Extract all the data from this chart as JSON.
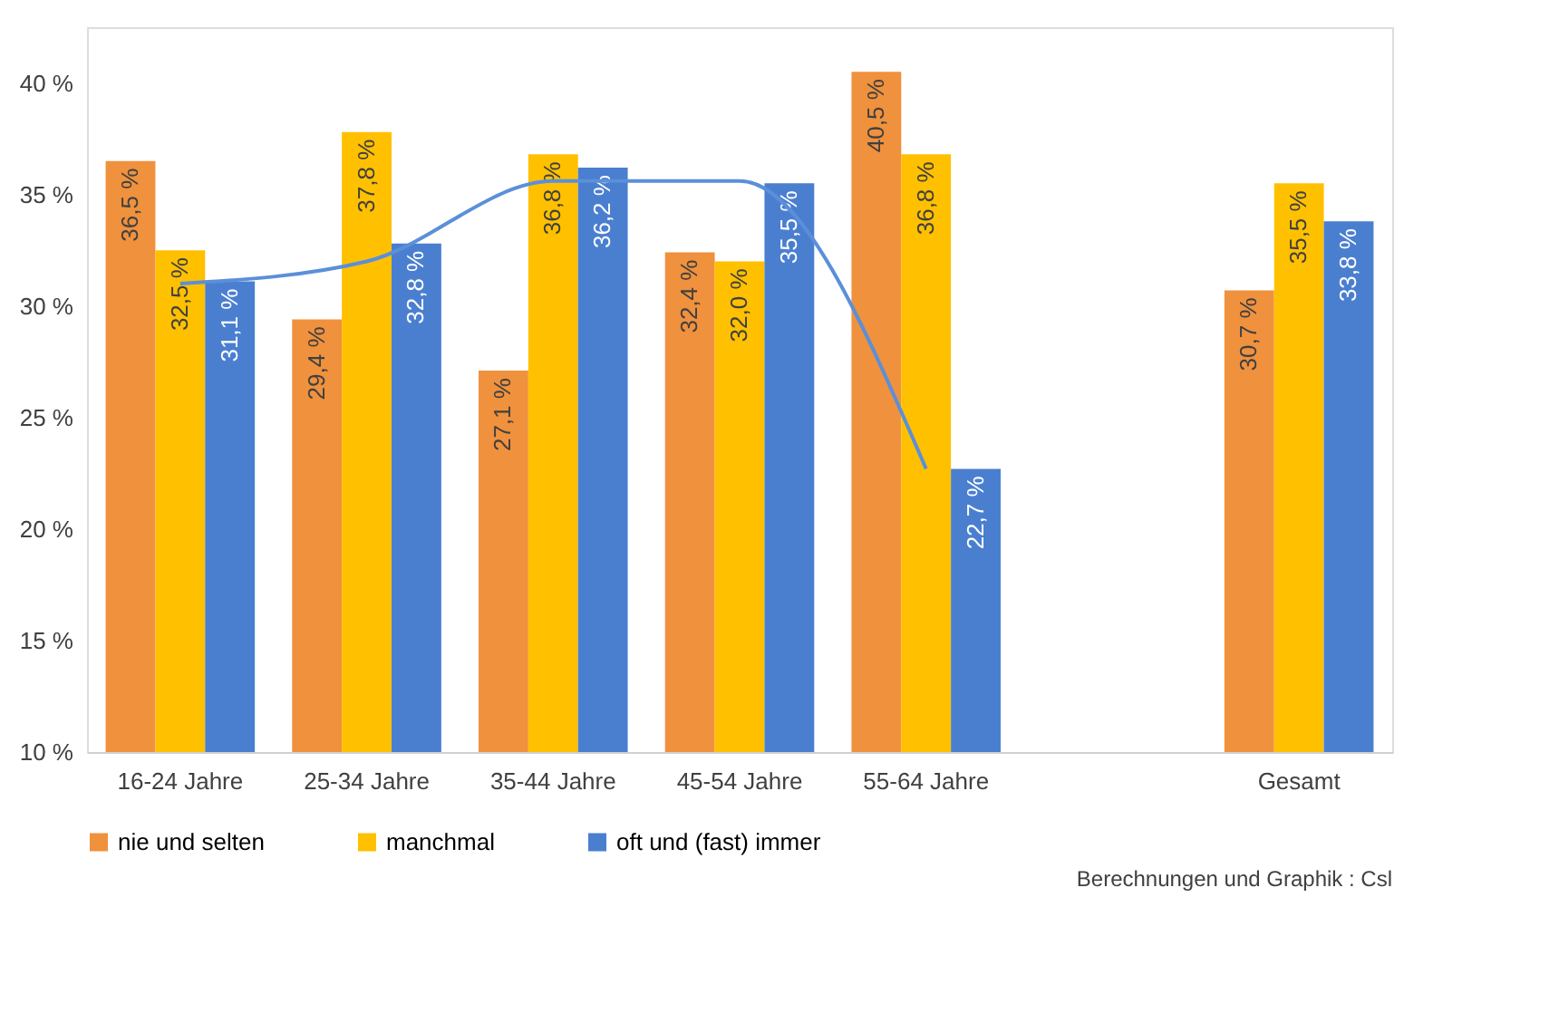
{
  "chart_data": {
    "type": "bar",
    "categories": [
      "16-24 Jahre",
      "25-34 Jahre",
      "35-44 Jahre",
      "45-54 Jahre",
      "55-64 Jahre",
      null,
      "Gesamt"
    ],
    "series": [
      {
        "name": "nie und selten",
        "color": "#f0913d",
        "values": [
          36.5,
          29.4,
          27.1,
          32.4,
          40.5,
          null,
          30.7
        ],
        "value_labels": [
          "36,5 %",
          "29,4 %",
          "27,1 %",
          "32,4 %",
          "40,5 %",
          null,
          "30,7 %"
        ]
      },
      {
        "name": "manchmal",
        "color": "#ffc000",
        "values": [
          32.5,
          37.8,
          36.8,
          32.0,
          36.8,
          null,
          35.5
        ],
        "value_labels": [
          "32,5 %",
          "37,8 %",
          "36,8 %",
          "32,0 %",
          "36,8 %",
          null,
          "35,5 %"
        ]
      },
      {
        "name": "oft und (fast) immer",
        "color": "#4a7fd0",
        "values": [
          31.1,
          32.8,
          36.2,
          35.5,
          22.7,
          null,
          33.8
        ],
        "value_labels": [
          "31,1 %",
          "32,8 %",
          "36,2 %",
          "35,5 %",
          "22,7 %",
          null,
          "33,8 %"
        ]
      },
      {
        "type": "line",
        "color": "#5b8fd9",
        "values": [
          31.0,
          32.0,
          35.6,
          35.6,
          22.7,
          null,
          null
        ]
      }
    ],
    "ylim": [
      10,
      42.5
    ],
    "yticks": [
      {
        "value": 10,
        "label": "10 %"
      },
      {
        "value": 15,
        "label": "15 %"
      },
      {
        "value": 20,
        "label": "20 %"
      },
      {
        "value": 25,
        "label": "25 %"
      },
      {
        "value": 30,
        "label": "30 %"
      },
      {
        "value": 35,
        "label": "35 %"
      },
      {
        "value": 40,
        "label": "40 %"
      }
    ],
    "grid": false,
    "legend": "bottom",
    "annotations": [
      "Berechnungen und Graphik : Csl"
    ]
  }
}
